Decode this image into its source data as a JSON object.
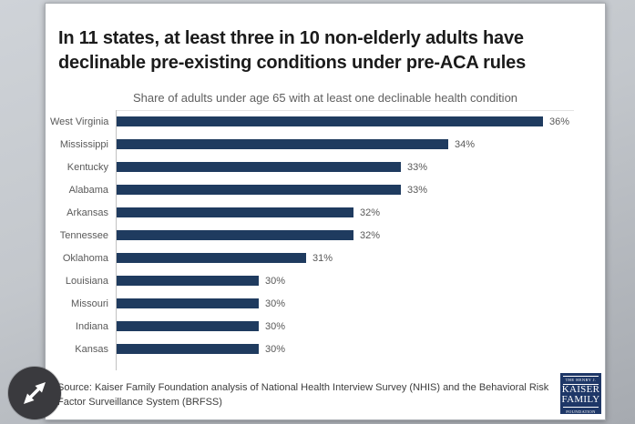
{
  "slide": {
    "title_lines": [
      "In 11 states, at least three in 10 non-elderly adults have",
      "declinable pre-existing conditions under pre-ACA rules"
    ],
    "subtitle": "Share of adults under age 65 with at least one declinable health condition",
    "source": "Source: Kaiser Family Foundation analysis of National Health Interview Survey (NHIS) and the Behavioral Risk Factor Surveillance System (BRFSS)"
  },
  "chart_data": {
    "type": "bar",
    "orientation": "horizontal",
    "title": "In 11 states, at least three in 10 non-elderly adults have declinable pre-existing conditions under pre-ACA rules",
    "subtitle": "Share of adults under age 65 with at least one declinable health condition",
    "categories": [
      "West Virginia",
      "Mississippi",
      "Kentucky",
      "Alabama",
      "Arkansas",
      "Tennessee",
      "Oklahoma",
      "Louisiana",
      "Missouri",
      "Indiana",
      "Kansas"
    ],
    "values": [
      36,
      34,
      33,
      33,
      32,
      32,
      31,
      30,
      30,
      30,
      30
    ],
    "value_label_suffix": "%",
    "bar_color": "#1f3b5f",
    "label_color": "#595959",
    "xlabel": "",
    "ylabel": "",
    "axis": {
      "display_min": 27,
      "display_max": 37,
      "gridlines": false,
      "vertical_axis_line": true
    },
    "legend": "none",
    "data_labels": "end-of-bar"
  },
  "logo": {
    "line1": "THE HENRY J.",
    "line2": "KAISER",
    "line3": "FAMILY",
    "line4": "FOUNDATION",
    "background_color": "#1e3767"
  },
  "colors": {
    "desktop_background": "#c3c7cc",
    "card_background": "#ffffff",
    "title_text": "#1b1b1b",
    "muted_text": "#595959"
  }
}
